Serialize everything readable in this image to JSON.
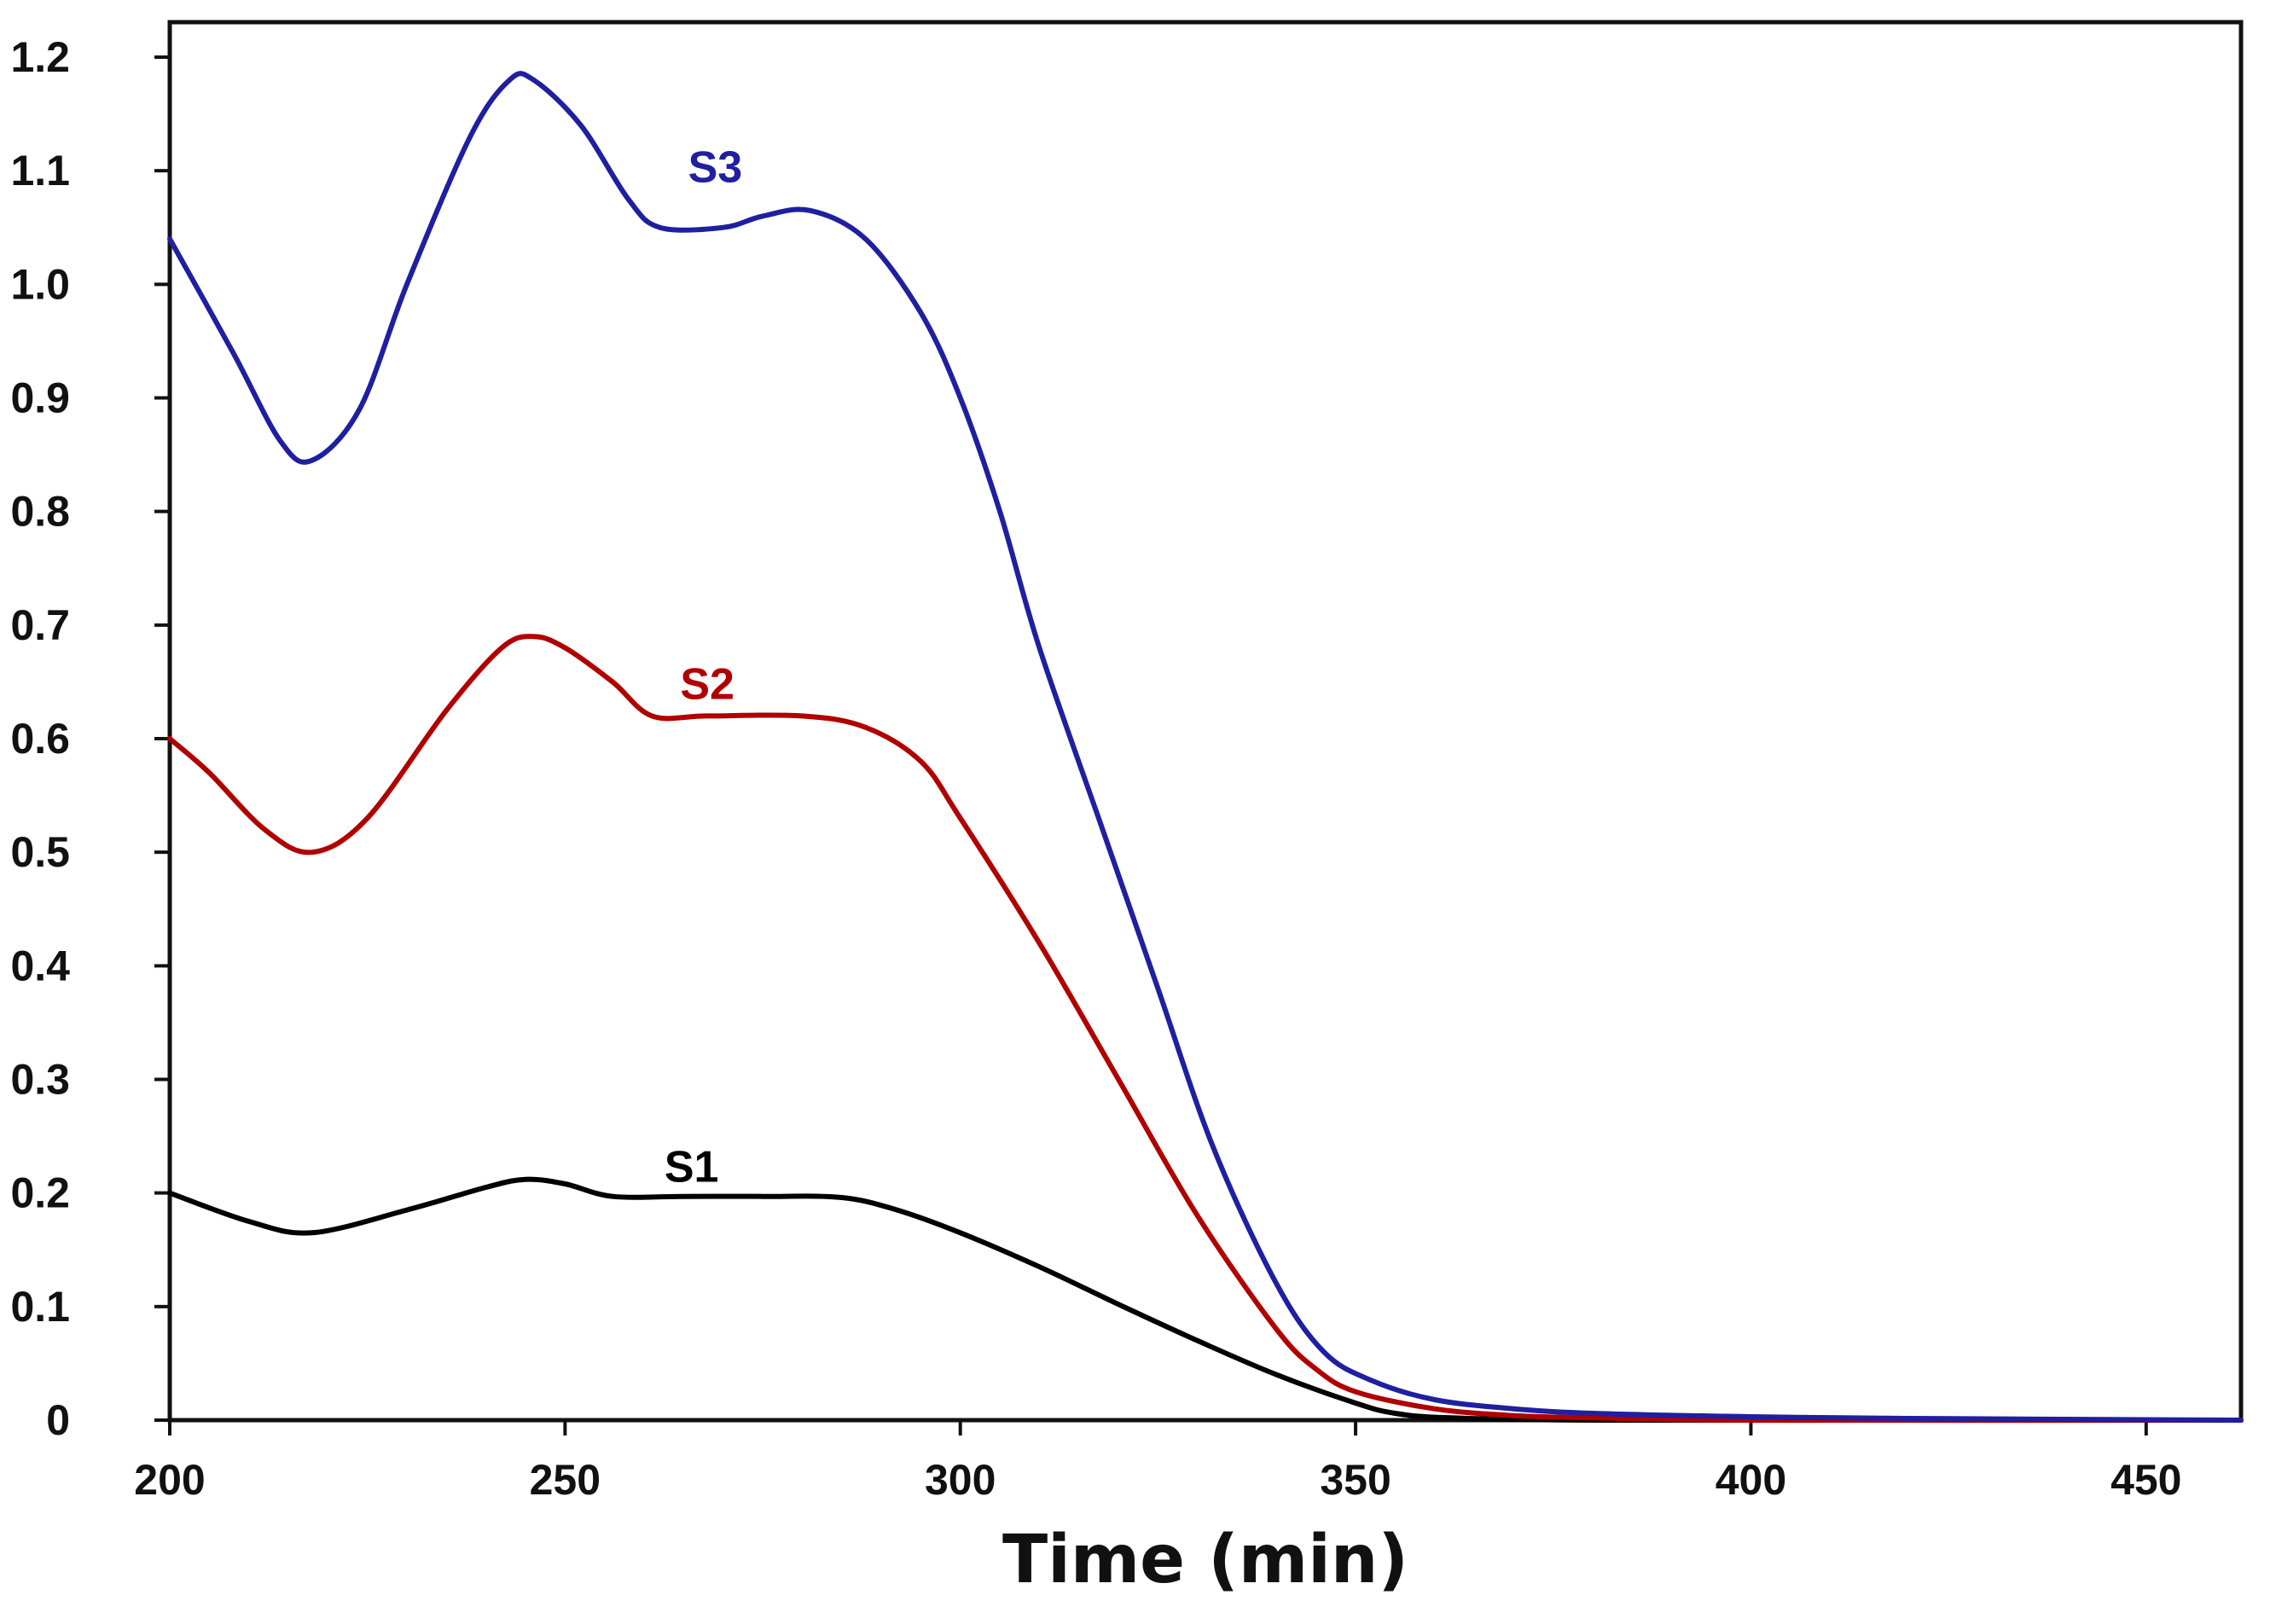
{
  "chart_data": {
    "type": "line",
    "title": "",
    "xlabel": "Time (min)",
    "ylabel": "",
    "xlim": [
      200,
      462
    ],
    "ylim": [
      0,
      1.22
    ],
    "x_ticks": [
      200,
      250,
      300,
      350,
      400,
      450
    ],
    "y_ticks": [
      0,
      0.1,
      0.2,
      0.3,
      0.4,
      0.5,
      0.6,
      0.7,
      0.8,
      0.9,
      1.0,
      1.1,
      1.2
    ],
    "x_tick_labels": [
      "200",
      "250",
      "300",
      "350",
      "400",
      "450"
    ],
    "y_tick_labels": [
      "0",
      "0.1",
      "0.2",
      "0.3",
      "0.4",
      "0.5",
      "0.6",
      "0.7",
      "0.8",
      "0.9",
      "1.0",
      "1.1",
      "1.2"
    ],
    "grid": false,
    "series": [
      {
        "name": "S1",
        "color": "#000000",
        "label_at": [
          266,
          0.21
        ],
        "points": [
          [
            200,
            0.2
          ],
          [
            210,
            0.175
          ],
          [
            218,
            0.165
          ],
          [
            230,
            0.185
          ],
          [
            240,
            0.205
          ],
          [
            245,
            0.212
          ],
          [
            250,
            0.208
          ],
          [
            256,
            0.197
          ],
          [
            265,
            0.197
          ],
          [
            275,
            0.197
          ],
          [
            285,
            0.196
          ],
          [
            292,
            0.185
          ],
          [
            300,
            0.165
          ],
          [
            310,
            0.135
          ],
          [
            320,
            0.102
          ],
          [
            330,
            0.07
          ],
          [
            340,
            0.04
          ],
          [
            350,
            0.015
          ],
          [
            355,
            0.006
          ],
          [
            362,
            0.002
          ],
          [
            380,
            0.0
          ],
          [
            420,
            0.0
          ],
          [
            462,
            0.0
          ]
        ]
      },
      {
        "name": "S2",
        "color": "#b00000",
        "label_at": [
          268,
          0.635
        ],
        "points": [
          [
            200,
            0.6
          ],
          [
            205,
            0.57
          ],
          [
            212,
            0.52
          ],
          [
            218,
            0.5
          ],
          [
            225,
            0.53
          ],
          [
            235,
            0.625
          ],
          [
            242,
            0.68
          ],
          [
            246,
            0.69
          ],
          [
            250,
            0.68
          ],
          [
            256,
            0.65
          ],
          [
            261,
            0.62
          ],
          [
            268,
            0.62
          ],
          [
            280,
            0.62
          ],
          [
            288,
            0.61
          ],
          [
            295,
            0.58
          ],
          [
            300,
            0.53
          ],
          [
            310,
            0.42
          ],
          [
            320,
            0.3
          ],
          [
            330,
            0.18
          ],
          [
            340,
            0.08
          ],
          [
            345,
            0.045
          ],
          [
            350,
            0.025
          ],
          [
            360,
            0.01
          ],
          [
            370,
            0.004
          ],
          [
            380,
            0.002
          ],
          [
            400,
            0.0
          ],
          [
            462,
            0.0
          ]
        ]
      },
      {
        "name": "S3",
        "color": "#1f1fa0",
        "label_at": [
          269,
          1.09
        ],
        "points": [
          [
            200,
            1.04
          ],
          [
            208,
            0.94
          ],
          [
            214,
            0.862
          ],
          [
            218,
            0.845
          ],
          [
            224,
            0.89
          ],
          [
            230,
            1.0
          ],
          [
            238,
            1.13
          ],
          [
            243,
            1.18
          ],
          [
            246,
            1.18
          ],
          [
            252,
            1.14
          ],
          [
            258,
            1.075
          ],
          [
            262,
            1.05
          ],
          [
            270,
            1.05
          ],
          [
            275,
            1.06
          ],
          [
            281,
            1.065
          ],
          [
            288,
            1.04
          ],
          [
            295,
            0.975
          ],
          [
            300,
            0.9
          ],
          [
            305,
            0.8
          ],
          [
            310,
            0.68
          ],
          [
            318,
            0.52
          ],
          [
            325,
            0.38
          ],
          [
            332,
            0.24
          ],
          [
            340,
            0.12
          ],
          [
            346,
            0.06
          ],
          [
            352,
            0.035
          ],
          [
            360,
            0.018
          ],
          [
            370,
            0.01
          ],
          [
            380,
            0.006
          ],
          [
            400,
            0.003
          ],
          [
            420,
            0.0015
          ],
          [
            462,
            0.0
          ]
        ]
      }
    ]
  }
}
